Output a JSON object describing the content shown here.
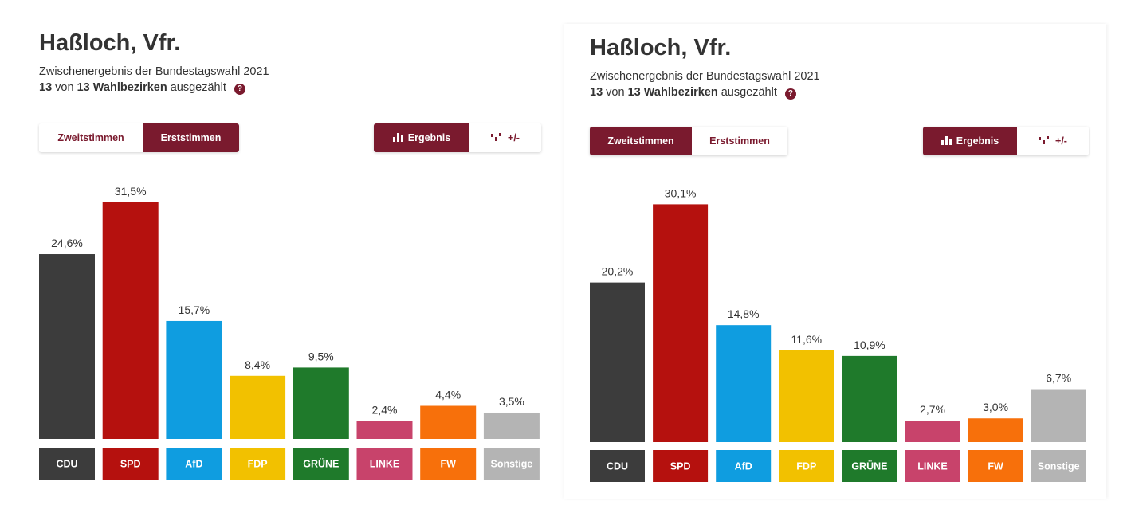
{
  "colors": {
    "accent": "#7a1a2e",
    "CDU": "#3c3c3c",
    "SPD": "#b5110e",
    "AfD": "#0f9de0",
    "FDP": "#f2c100",
    "GRÜNE": "#1f7a2b",
    "LINKE": "#c8436b",
    "FW": "#f7700b",
    "Sonstige": "#b4b4b4"
  },
  "panels": [
    {
      "title": "Haßloch, Vfr.",
      "subtitle": "Zwischenergebnis der Bundestagswahl 2021",
      "progress": {
        "counted": "13",
        "von": "von",
        "total": "13",
        "unit": "Wahlbezirken",
        "suffix": "ausgezählt"
      },
      "vote_tabs": [
        {
          "label": "Zweitstimmen",
          "active": false
        },
        {
          "label": "Erststimmen",
          "active": true
        }
      ],
      "view_tabs": [
        {
          "label": "Ergebnis",
          "icon": "bar-chart-icon",
          "active": true
        },
        {
          "label": "+/-",
          "icon": "diff-chart-icon",
          "active": false
        }
      ],
      "chart_data": {
        "type": "bar",
        "title": "",
        "categories": [
          "CDU",
          "SPD",
          "AfD",
          "FDP",
          "GRÜNE",
          "LINKE",
          "FW",
          "Sonstige"
        ],
        "values": [
          24.6,
          31.5,
          15.7,
          8.4,
          9.5,
          2.4,
          4.4,
          3.5
        ],
        "labels": [
          "24,6%",
          "31,5%",
          "15,7%",
          "8,4%",
          "9,5%",
          "2,4%",
          "4,4%",
          "3,5%"
        ],
        "ylim": [
          0,
          35
        ],
        "grid": false,
        "legend": "none"
      }
    },
    {
      "title": "Haßloch, Vfr.",
      "subtitle": "Zwischenergebnis der Bundestagswahl 2021",
      "progress": {
        "counted": "13",
        "von": "von",
        "total": "13",
        "unit": "Wahlbezirken",
        "suffix": "ausgezählt"
      },
      "vote_tabs": [
        {
          "label": "Zweitstimmen",
          "active": true
        },
        {
          "label": "Erststimmen",
          "active": false
        }
      ],
      "view_tabs": [
        {
          "label": "Ergebnis",
          "icon": "bar-chart-icon",
          "active": true
        },
        {
          "label": "+/-",
          "icon": "diff-chart-icon",
          "active": false
        }
      ],
      "chart_data": {
        "type": "bar",
        "title": "",
        "categories": [
          "CDU",
          "SPD",
          "AfD",
          "FDP",
          "GRÜNE",
          "LINKE",
          "FW",
          "Sonstige"
        ],
        "values": [
          20.2,
          30.1,
          14.8,
          11.6,
          10.9,
          2.7,
          3.0,
          6.7
        ],
        "labels": [
          "20,2%",
          "30,1%",
          "14,8%",
          "11,6%",
          "10,9%",
          "2,7%",
          "3,0%",
          "6,7%"
        ],
        "ylim": [
          0,
          35
        ],
        "grid": false,
        "legend": "none"
      }
    }
  ]
}
